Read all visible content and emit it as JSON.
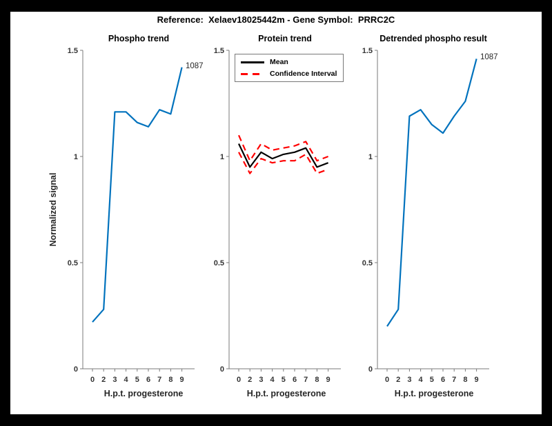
{
  "figure": {
    "title": "Reference:  Xelaev18025442m - Gene Symbol:  PRRC2C",
    "background": "#ffffff",
    "frame_color": "#000000"
  },
  "colors": {
    "line_blue": "#0072BD",
    "mean_black": "#000000",
    "ci_red": "#ff0000",
    "axis_line": "#7a7a7a",
    "tick_text": "#333333"
  },
  "axes": {
    "x_ticklabels": [
      "0",
      "2",
      "3",
      "4",
      "5",
      "6",
      "7",
      "8",
      "9"
    ],
    "y_ticklabels": [
      "0",
      "0.5",
      "1",
      "1.5"
    ],
    "y_tickvalues": [
      0,
      0.5,
      1,
      1.5
    ],
    "ylim": [
      0,
      1.5
    ]
  },
  "chart_data": [
    {
      "type": "line",
      "title": "Phospho trend",
      "xlabel": "H.p.t. progesterone",
      "ylabel": "Normalized signal",
      "categories": [
        "0",
        "2",
        "3",
        "4",
        "5",
        "6",
        "7",
        "8",
        "9"
      ],
      "ylim": [
        0,
        1.5
      ],
      "end_label": "1087",
      "series": [
        {
          "name": "phospho-signal",
          "color": "#0072BD",
          "style": "solid",
          "values": [
            0.22,
            0.28,
            1.21,
            1.21,
            1.16,
            1.14,
            1.22,
            1.2,
            1.42
          ]
        }
      ]
    },
    {
      "type": "line",
      "title": "Protein trend",
      "xlabel": "H.p.t. progesterone",
      "categories": [
        "0",
        "2",
        "3",
        "4",
        "5",
        "6",
        "7",
        "8",
        "9"
      ],
      "ylim": [
        0,
        1.5
      ],
      "legend": [
        {
          "label": "Mean",
          "color": "#000000",
          "style": "solid"
        },
        {
          "label": "Confidence Interval",
          "color": "#ff0000",
          "style": "dashed"
        }
      ],
      "series": [
        {
          "name": "ci-upper",
          "color": "#ff0000",
          "style": "dashed",
          "values": [
            1.1,
            0.98,
            1.06,
            1.03,
            1.04,
            1.05,
            1.07,
            0.98,
            1.0
          ]
        },
        {
          "name": "ci-lower",
          "color": "#ff0000",
          "style": "dashed",
          "values": [
            1.02,
            0.92,
            0.99,
            0.97,
            0.98,
            0.98,
            1.01,
            0.92,
            0.94
          ]
        },
        {
          "name": "mean",
          "color": "#000000",
          "style": "solid",
          "values": [
            1.06,
            0.95,
            1.02,
            0.99,
            1.01,
            1.02,
            1.04,
            0.95,
            0.97
          ]
        }
      ]
    },
    {
      "type": "line",
      "title": "Detrended phospho result",
      "xlabel": "H.p.t. progesterone",
      "categories": [
        "0",
        "2",
        "3",
        "4",
        "5",
        "6",
        "7",
        "8",
        "9"
      ],
      "ylim": [
        0,
        1.5
      ],
      "end_label": "1087",
      "series": [
        {
          "name": "detrended-phospho-signal",
          "color": "#0072BD",
          "style": "solid",
          "values": [
            0.2,
            0.28,
            1.19,
            1.22,
            1.15,
            1.11,
            1.19,
            1.26,
            1.46
          ]
        }
      ]
    }
  ]
}
